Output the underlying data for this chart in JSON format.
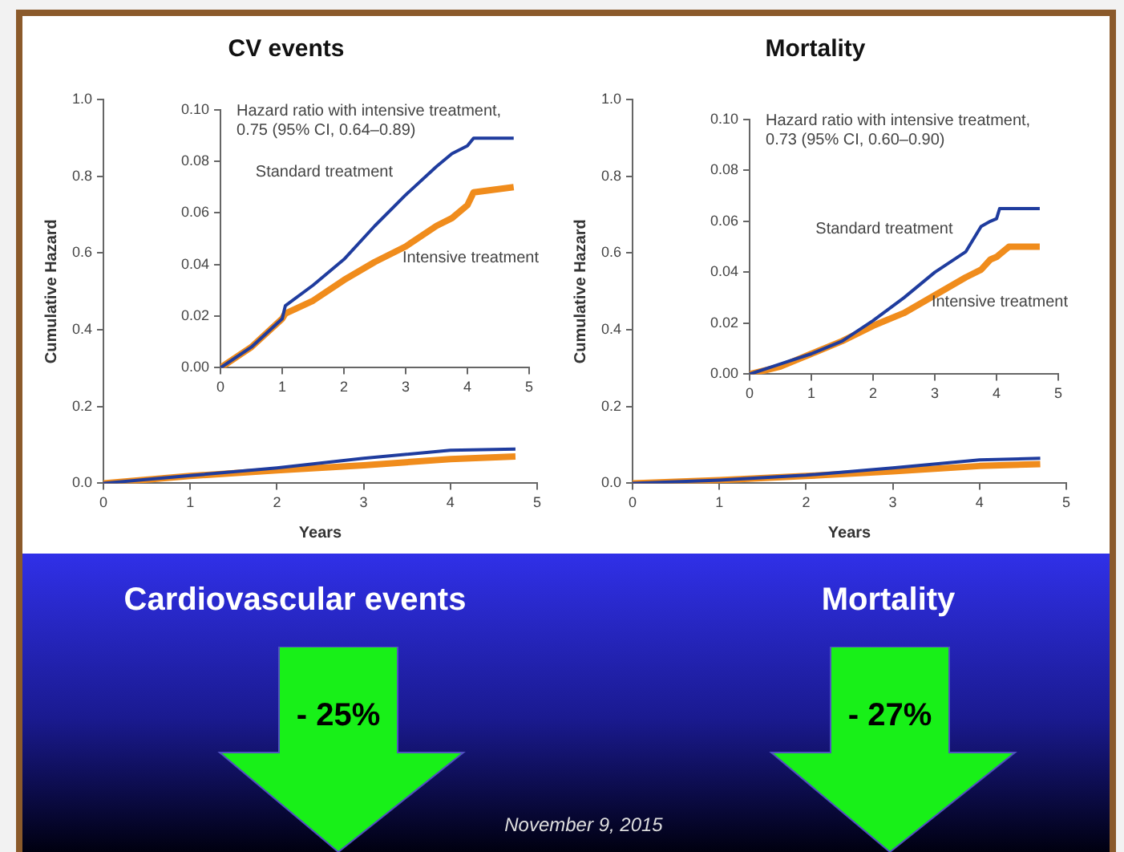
{
  "chart_data": [
    {
      "type": "line",
      "title": "CV events",
      "xlabel": "Years",
      "ylabel": "Cumulative Hazard",
      "xlim": [
        0,
        5
      ],
      "xticks": [
        0,
        1,
        2,
        3,
        4,
        5
      ],
      "ylim": [
        0,
        1
      ],
      "yticks": [
        {
          "value": 0,
          "label": "0.0"
        },
        {
          "value": 0.2,
          "label": "0.2"
        },
        {
          "value": 0.4,
          "label": "0.4"
        },
        {
          "value": 0.6,
          "label": "0.6"
        },
        {
          "value": 0.8,
          "label": "0.8"
        },
        {
          "value": 1,
          "label": "1.0"
        }
      ],
      "x": [
        0,
        1,
        2,
        3,
        4,
        4.75
      ],
      "series": [
        {
          "color": "#1f3c9e",
          "values": [
            0,
            0.02,
            0.04,
            0.065,
            0.086,
            0.089
          ]
        },
        {
          "color": "#f08c1c",
          "values": [
            0,
            0.019,
            0.034,
            0.047,
            0.063,
            0.07
          ]
        }
      ]
    },
    {
      "type": "line",
      "annotations": [
        "Hazard ratio with intensive treatment, 0.75 (95% CI, 0.64–0.89)"
      ],
      "xlim": [
        0,
        5
      ],
      "xticks": [
        0,
        1,
        2,
        3,
        4,
        5
      ],
      "ylim": [
        0,
        0.1
      ],
      "yticks": [
        {
          "value": 0,
          "label": "0.00"
        },
        {
          "value": 0.02,
          "label": "0.02"
        },
        {
          "value": 0.04,
          "label": "0.04"
        },
        {
          "value": 0.06,
          "label": "0.06"
        },
        {
          "value": 0.08,
          "label": "0.08"
        },
        {
          "value": 0.1,
          "label": "0.10"
        }
      ],
      "x": [
        0,
        0.5,
        1,
        1.05,
        1.5,
        2,
        2.5,
        3,
        3.5,
        3.75,
        4,
        4.1,
        4.75
      ],
      "series": [
        {
          "name": "Standard treatment",
          "color": "#1f3c9e",
          "values": [
            0,
            0.008,
            0.019,
            0.024,
            0.032,
            0.042,
            0.055,
            0.067,
            0.078,
            0.083,
            0.086,
            0.089,
            0.089
          ]
        },
        {
          "name": "Intensive treatment",
          "color": "#f08c1c",
          "values": [
            0,
            0.008,
            0.019,
            0.021,
            0.026,
            0.034,
            0.041,
            0.047,
            0.055,
            0.058,
            0.063,
            0.068,
            0.07
          ]
        }
      ]
    },
    {
      "type": "line",
      "title": "Mortality",
      "xlabel": "Years",
      "ylabel": "Cumulative Hazard",
      "xlim": [
        0,
        5
      ],
      "xticks": [
        0,
        1,
        2,
        3,
        4,
        5
      ],
      "ylim": [
        0,
        1
      ],
      "yticks": [
        {
          "value": 0,
          "label": "0.0"
        },
        {
          "value": 0.2,
          "label": "0.2"
        },
        {
          "value": 0.4,
          "label": "0.4"
        },
        {
          "value": 0.6,
          "label": "0.6"
        },
        {
          "value": 0.8,
          "label": "0.8"
        },
        {
          "value": 1,
          "label": "1.0"
        }
      ],
      "x": [
        0,
        1,
        2,
        3,
        4,
        4.7
      ],
      "series": [
        {
          "color": "#1f3c9e",
          "values": [
            0,
            0.008,
            0.021,
            0.04,
            0.061,
            0.065
          ]
        },
        {
          "color": "#f08c1c",
          "values": [
            0,
            0.008,
            0.019,
            0.031,
            0.045,
            0.05
          ]
        }
      ]
    },
    {
      "type": "line",
      "annotations": [
        "Hazard ratio with intensive treatment, 0.73 (95% CI, 0.60–0.90)"
      ],
      "xlim": [
        0,
        5
      ],
      "xticks": [
        0,
        1,
        2,
        3,
        4,
        5
      ],
      "ylim": [
        0,
        0.1
      ],
      "yticks": [
        {
          "value": 0,
          "label": "0.00"
        },
        {
          "value": 0.02,
          "label": "0.02"
        },
        {
          "value": 0.04,
          "label": "0.04"
        },
        {
          "value": 0.06,
          "label": "0.06"
        },
        {
          "value": 0.08,
          "label": "0.08"
        },
        {
          "value": 0.1,
          "label": "0.10"
        }
      ],
      "x": [
        0,
        0.5,
        1,
        1.5,
        2,
        2.5,
        3,
        3.5,
        3.75,
        3.9,
        4,
        4.05,
        4.2,
        4.7
      ],
      "series": [
        {
          "name": "Standard treatment",
          "color": "#1f3c9e",
          "values": [
            0,
            0.004,
            0.008,
            0.013,
            0.021,
            0.03,
            0.04,
            0.048,
            0.058,
            0.06,
            0.061,
            0.065,
            0.065,
            0.065
          ]
        },
        {
          "name": "Intensive treatment",
          "color": "#f08c1c",
          "values": [
            0,
            0.003,
            0.008,
            0.013,
            0.019,
            0.024,
            0.031,
            0.038,
            0.041,
            0.045,
            0.046,
            0.047,
            0.05,
            0.05
          ]
        }
      ]
    },
    {
      "type": "other",
      "annotations": [
        "Cardiovascular events",
        "- 25%",
        "Mortality",
        "- 27%",
        "November 9, 2015"
      ]
    }
  ]
}
